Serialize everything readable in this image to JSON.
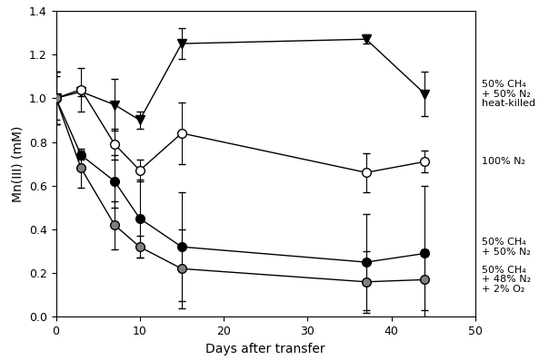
{
  "chart_data": {
    "type": "line",
    "x_label": "Days after transfer",
    "y_label": "Mn(III) (mM)",
    "xlim": [
      0,
      50
    ],
    "ylim": [
      0,
      1.4
    ],
    "xticks": [
      0,
      10,
      20,
      30,
      40,
      50
    ],
    "yticks": [
      {
        "value": 0,
        "label": "0.0"
      },
      {
        "value": 0.2,
        "label": "0.2"
      },
      {
        "value": 0.4,
        "label": "0.4"
      },
      {
        "value": 0.6,
        "label": "0.6"
      },
      {
        "value": 0.8,
        "label": "0.8"
      },
      {
        "value": 1.0,
        "label": "1.0"
      },
      {
        "value": 1.2,
        "label": "1.2"
      },
      {
        "value": 1.4,
        "label": "1.4"
      }
    ],
    "grid": false,
    "x": [
      0,
      3,
      7,
      10,
      15,
      37,
      44
    ],
    "series": [
      {
        "name": "50% CH₄\n+ 50% N₂\nheat-killed",
        "color": "#000000",
        "marker": "triangle_down",
        "values": [
          1.0,
          1.03,
          0.97,
          0.9,
          1.25,
          1.27,
          1.02
        ],
        "errors": [
          0.12,
          0.02,
          0.12,
          0.04,
          0.07,
          0.02,
          0.1
        ]
      },
      {
        "name": "100% N₂",
        "color": "#ffffff",
        "marker": "circle",
        "values": [
          1.0,
          1.04,
          0.79,
          0.67,
          0.84,
          0.66,
          0.71
        ],
        "errors": [
          0.12,
          0.1,
          0.07,
          0.05,
          0.14,
          0.09,
          0.05
        ]
      },
      {
        "name": "50% CH₄\n+ 50% N₂",
        "color": "#000000",
        "marker": "circle",
        "values": [
          1.0,
          0.74,
          0.62,
          0.45,
          0.32,
          0.25,
          0.29
        ],
        "errors": [
          0.1,
          0.02,
          0.12,
          0.18,
          0.25,
          0.22,
          0.31
        ]
      },
      {
        "name": "50% CH₄\n+ 48% N₂\n+ 2% O₂",
        "color": "#808080",
        "marker": "circle",
        "values": [
          1.0,
          0.68,
          0.42,
          0.32,
          0.22,
          0.16,
          0.17
        ],
        "errors": [
          0.12,
          0.09,
          0.11,
          0.05,
          0.18,
          0.14,
          0.14
        ]
      }
    ]
  }
}
